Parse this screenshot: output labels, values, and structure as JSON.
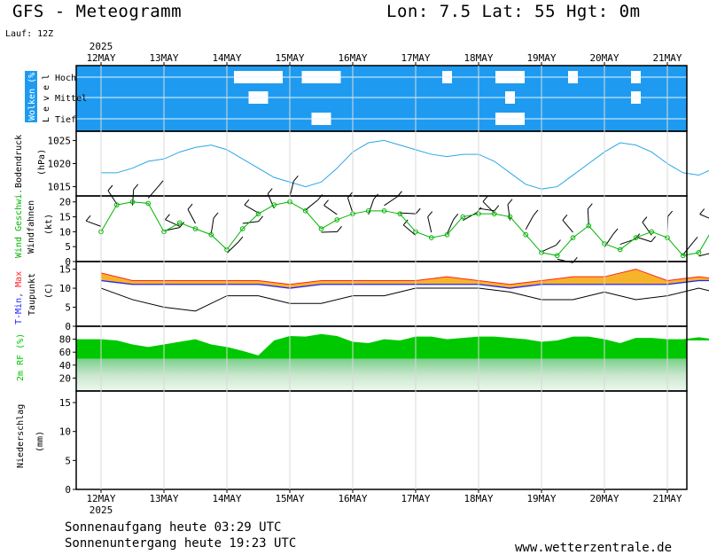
{
  "header": {
    "title": "GFS - Meteogramm",
    "location": "Lon: 7.5 Lat: 55 Hgt: 0m",
    "run": "Lauf: 12Z",
    "year_top": "2025",
    "year_bottom": "2025"
  },
  "footer": {
    "sunrise": "Sonnenaufgang heute 03:29 UTC",
    "sunset": "Sonnenuntergang heute 19:23 UTC",
    "website": "www.wetterzentrale.de"
  },
  "colors": {
    "cloud_sky": "#1e9bf0",
    "pressure_line": "#2aa6e6",
    "wind_green": "#00b400",
    "tmin_blue": "#2222ff",
    "tmax_red": "#ff2222",
    "rh_green": "#00c800"
  },
  "chart_data": [
    {
      "type": "area",
      "panel": "clouds",
      "ylabel": "Wolken (%) Level",
      "level_labels": [
        "Hoch",
        "Mittel",
        "Tief"
      ],
      "x": [
        "12MAY",
        "13MAY",
        "14MAY",
        "15MAY",
        "16MAY",
        "17MAY",
        "18MAY",
        "19MAY",
        "20MAY",
        "21MAY"
      ],
      "series": [
        {
          "name": "Hoch",
          "values": [
            100,
            100,
            75,
            80,
            100,
            95,
            85,
            95,
            95,
            95
          ]
        },
        {
          "name": "Mittel",
          "values": [
            100,
            100,
            90,
            100,
            100,
            100,
            95,
            100,
            95,
            100
          ]
        },
        {
          "name": "Tief",
          "values": [
            100,
            100,
            100,
            90,
            100,
            100,
            85,
            100,
            100,
            100
          ]
        }
      ],
      "ylim": [
        0,
        100
      ]
    },
    {
      "type": "line",
      "panel": "pressure",
      "ylabel": "Bodendruck (hPa)",
      "y_ticks": [
        "1025",
        "1020",
        "1015"
      ],
      "ylim": [
        1013,
        1027
      ],
      "x_days": [
        0,
        0.25,
        0.5,
        0.75,
        1,
        1.25,
        1.5,
        1.75,
        2,
        2.25,
        2.5,
        2.75,
        3,
        3.25,
        3.5,
        3.75,
        4,
        4.25,
        4.5,
        4.75,
        5,
        5.25,
        5.5,
        5.75,
        6,
        6.25,
        6.5,
        6.75,
        7,
        7.25,
        7.5,
        7.75,
        8,
        8.25,
        8.5,
        8.75,
        9,
        9.25,
        9.5,
        9.75,
        10
      ],
      "values": [
        1018,
        1018,
        1019,
        1020.5,
        1021,
        1022.5,
        1023.5,
        1024,
        1023,
        1021,
        1019,
        1017,
        1016,
        1015,
        1016,
        1019,
        1022.5,
        1024.5,
        1025,
        1024,
        1023,
        1022,
        1021.5,
        1022,
        1022,
        1020.5,
        1018,
        1015.5,
        1014.5,
        1015,
        1017.5,
        1020,
        1022.5,
        1024.5,
        1024,
        1022.5,
        1020,
        1018,
        1017.5,
        1019,
        1021
      ]
    },
    {
      "type": "line",
      "panel": "wind",
      "ylabel": "Wind Geschwi. Windfahnen (kt)",
      "series_names": [
        "Wind Geschwi.",
        "Windfahnen"
      ],
      "y_ticks": [
        "20",
        "15",
        "10",
        "5",
        "0"
      ],
      "ylim": [
        0,
        22
      ],
      "x_days": [
        0,
        0.25,
        0.5,
        0.75,
        1,
        1.25,
        1.5,
        1.75,
        2,
        2.25,
        2.5,
        2.75,
        3,
        3.25,
        3.5,
        3.75,
        4,
        4.25,
        4.5,
        4.75,
        5,
        5.25,
        5.5,
        5.75,
        6,
        6.25,
        6.5,
        6.75,
        7,
        7.25,
        7.5,
        7.75,
        8,
        8.25,
        8.5,
        8.75,
        9,
        9.25,
        9.5,
        9.75,
        10
      ],
      "values": [
        10,
        19,
        20,
        19.5,
        10,
        13,
        11,
        9,
        4,
        11,
        16,
        19,
        20,
        17,
        11,
        14,
        16,
        17,
        17,
        16,
        10,
        8,
        9,
        15,
        16,
        16,
        15,
        9,
        3,
        2,
        8,
        12,
        6,
        4,
        8,
        10,
        8,
        2,
        3,
        12,
        10
      ]
    },
    {
      "type": "line",
      "panel": "temperature",
      "ylabel": "T-Min, Max Taupunkt (C)",
      "series_names": [
        "T-Min",
        "Max",
        "Taupunkt"
      ],
      "y_ticks": [
        "15",
        "10",
        "5",
        "0"
      ],
      "ylim": [
        0,
        17
      ],
      "x_days": [
        0,
        0.5,
        1,
        1.5,
        2,
        2.5,
        3,
        3.5,
        4,
        4.5,
        5,
        5.5,
        6,
        6.5,
        7,
        7.5,
        8,
        8.5,
        9,
        9.5,
        10
      ],
      "series": [
        {
          "name": "T-Min",
          "values": [
            12,
            11,
            11,
            11,
            11,
            11,
            10,
            11,
            11,
            11,
            11,
            11,
            11,
            10,
            11,
            11,
            11,
            11,
            11,
            12,
            12
          ]
        },
        {
          "name": "Max",
          "values": [
            14,
            12,
            12,
            12,
            12,
            12,
            11,
            12,
            12,
            12,
            12,
            13,
            12,
            11,
            12,
            13,
            13,
            15,
            12,
            13,
            12
          ]
        },
        {
          "name": "Taupunkt",
          "values": [
            10,
            7,
            5,
            4,
            8,
            8,
            6,
            6,
            8,
            8,
            10,
            10,
            10,
            9,
            7,
            7,
            9,
            7,
            8,
            10,
            8
          ]
        }
      ]
    },
    {
      "type": "area",
      "panel": "humidity",
      "ylabel": "2m RF (%)",
      "y_ticks": [
        "80",
        "60",
        "40",
        "20"
      ],
      "ylim": [
        0,
        100
      ],
      "x_days": [
        0,
        0.25,
        0.5,
        0.75,
        1,
        1.25,
        1.5,
        1.75,
        2,
        2.25,
        2.5,
        2.75,
        3,
        3.25,
        3.5,
        3.75,
        4,
        4.25,
        4.5,
        4.75,
        5,
        5.25,
        5.5,
        5.75,
        6,
        6.25,
        6.5,
        6.75,
        7,
        7.25,
        7.5,
        7.75,
        8,
        8.25,
        8.5,
        8.75,
        9,
        9.25,
        9.5,
        9.75,
        10
      ],
      "values": [
        80,
        78,
        72,
        68,
        72,
        76,
        80,
        72,
        68,
        62,
        55,
        78,
        85,
        84,
        88,
        85,
        76,
        74,
        80,
        78,
        84,
        84,
        80,
        82,
        84,
        84,
        82,
        80,
        76,
        78,
        84,
        84,
        80,
        74,
        82,
        82,
        80,
        80,
        83,
        80,
        78
      ]
    },
    {
      "type": "bar",
      "panel": "precipitation",
      "ylabel": "Niederschlag (mm)",
      "y_ticks": [
        "15",
        "10",
        "5",
        "0"
      ],
      "ylim": [
        0,
        17
      ],
      "categories": [
        "12MAY",
        "13MAY",
        "14MAY",
        "15MAY",
        "16MAY",
        "17MAY",
        "18MAY",
        "19MAY",
        "20MAY",
        "21MAY"
      ],
      "values": [
        0,
        0,
        0,
        0,
        0,
        0,
        0,
        0,
        0,
        0
      ]
    }
  ],
  "panel_labels": {
    "clouds_a": "Wolken (%)",
    "clouds_b": "L e v e l",
    "clouds_hoch": "Hoch",
    "clouds_mittel": "Mittel",
    "clouds_tief": "Tief",
    "pressure_a": "Bodendruck",
    "pressure_b": "(hPa)",
    "wind_a": "Wind Geschwi.",
    "wind_b": "Windfahnen",
    "wind_c": "(kt)",
    "temp_a1": "T-Min,",
    "temp_a2": "Max",
    "temp_b": "Taupunkt",
    "temp_c": "(C)",
    "rh_a": "2m RF (%)",
    "precip_a": "Niederschlag",
    "precip_b": "(mm)"
  }
}
